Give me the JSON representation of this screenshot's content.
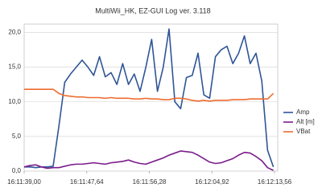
{
  "chart_data": {
    "type": "line",
    "title": "MultiWii_HK, EZ-GUI Log ver. 3.118",
    "x": [
      58299.0,
      58299.8,
      58300.6,
      58301.4,
      58302.2,
      58303.0,
      58303.8,
      58304.6,
      58305.4,
      58306.2,
      58307.0,
      58307.8,
      58308.6,
      58309.4,
      58310.2,
      58311.0,
      58311.8,
      58312.6,
      58313.4,
      58314.2,
      58315.0,
      58315.8,
      58316.6,
      58317.4,
      58318.2,
      58319.0,
      58319.8,
      58320.6,
      58321.4,
      58322.2,
      58323.0,
      58323.8,
      58324.6,
      58325.4,
      58326.2,
      58327.0,
      58327.8,
      58328.6,
      58329.4,
      58330.2,
      58331.0,
      58331.8,
      58332.6,
      58333.4
    ],
    "series": [
      {
        "name": "Amp",
        "color": "#2f5597",
        "values": [
          0.6,
          0.6,
          0.5,
          0.6,
          0.6,
          0.7,
          6.5,
          12.8,
          14,
          15,
          16,
          15,
          13.8,
          16.5,
          13.6,
          14.2,
          12.5,
          15.5,
          12.5,
          14,
          11.5,
          15,
          19,
          11.5,
          15,
          20.5,
          10,
          9,
          13.5,
          13.8,
          17,
          11,
          10.5,
          16.5,
          17.5,
          18,
          15.5,
          17,
          19.5,
          15.5,
          17,
          13,
          3,
          0.6
        ]
      },
      {
        "name": "Alt [m]",
        "color": "#7b1c8c",
        "values": [
          0.6,
          0.8,
          0.9,
          0.6,
          0.4,
          0.5,
          0.5,
          0.7,
          0.9,
          1.0,
          1.0,
          1.1,
          1.2,
          1.1,
          1.0,
          1.2,
          1.3,
          1.4,
          1.6,
          1.3,
          1.1,
          1.0,
          1.3,
          1.6,
          1.9,
          2.3,
          2.6,
          2.9,
          2.8,
          2.7,
          2.3,
          1.8,
          1.3,
          1.1,
          1.2,
          1.5,
          1.8,
          2.3,
          2.7,
          2.6,
          2.1,
          1.5,
          0.5,
          0.1
        ]
      },
      {
        "name": "VBat",
        "color": "#ed6c2f",
        "values": [
          11.8,
          11.8,
          11.8,
          11.8,
          11.8,
          11.8,
          11.2,
          10.9,
          10.8,
          10.7,
          10.7,
          10.6,
          10.6,
          10.6,
          10.5,
          10.6,
          10.5,
          10.5,
          10.5,
          10.4,
          10.4,
          10.5,
          10.4,
          10.4,
          10.3,
          10.3,
          10.5,
          10.5,
          10.4,
          10.2,
          10.1,
          10.2,
          10.1,
          10.2,
          10.2,
          10.2,
          10.3,
          10.3,
          10.3,
          10.4,
          10.4,
          10.4,
          10.4,
          11.2
        ]
      }
    ],
    "xlim": [
      58299,
      58334
    ],
    "xticks": [
      {
        "value": 58299,
        "label": "16:11:39,00"
      },
      {
        "value": 58307.64,
        "label": "16:11:47,64"
      },
      {
        "value": 58316.28,
        "label": "16:11:56,28"
      },
      {
        "value": 58324.92,
        "label": "16:12:04,92"
      },
      {
        "value": 58333.56,
        "label": "16:12:13,56"
      }
    ],
    "ylim": [
      0,
      21.2
    ],
    "yticks": [
      {
        "value": 0,
        "label": "0,0"
      },
      {
        "value": 5,
        "label": "5,0"
      },
      {
        "value": 10,
        "label": "10,0"
      },
      {
        "value": 15,
        "label": "15,0"
      },
      {
        "value": 20,
        "label": "20,0"
      }
    ],
    "grid": true,
    "legend": "right"
  }
}
